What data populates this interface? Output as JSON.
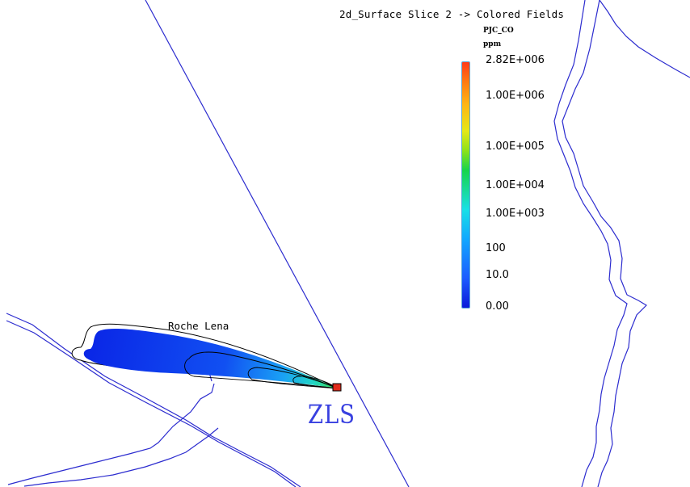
{
  "title": "2d_Surface Slice 2 -> Colored Fields",
  "legend": {
    "variable": "PJC_CO",
    "unit": "ppm",
    "ticks": [
      "2.82E+006",
      "1.00E+006",
      "1.00E+005",
      "1.00E+004",
      "1.00E+003",
      "100",
      "10.0",
      "0.00"
    ],
    "colors": [
      "#ff3a18",
      "#ff7a12",
      "#ffb414",
      "#e5e817",
      "#17d44a",
      "#18e0e6",
      "#12a8ff",
      "#0a1bd9"
    ]
  },
  "labels": {
    "place": "Roche Lena",
    "site": "ZLS"
  },
  "colors": {
    "coastline": "#2c2ccf",
    "contour": "#000000",
    "site_marker": "#e02a1a",
    "site_label": "#3840e0"
  }
}
